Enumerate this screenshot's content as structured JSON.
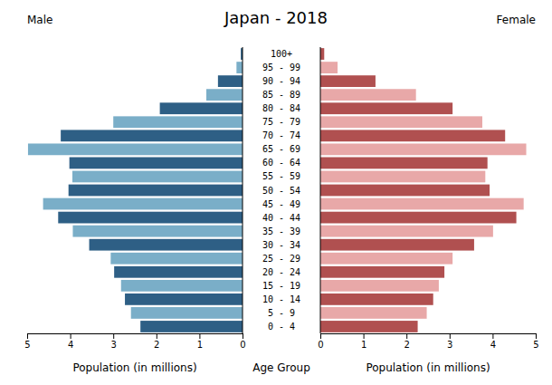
{
  "chart_data": {
    "type": "bar",
    "orientation": "horizontal",
    "title": "Japan - 2018",
    "xlabel_left": "Population (in millions)",
    "xlabel_right": "Population (in millions)",
    "ylabel": "Age Group",
    "categories": [
      "0 - 4",
      "5 - 9",
      "10 - 14",
      "15 - 19",
      "20 - 24",
      "25 - 29",
      "30 - 34",
      "35 - 39",
      "40 - 44",
      "45 - 49",
      "50 - 54",
      "55 - 59",
      "60 - 64",
      "65 - 69",
      "70 - 74",
      "75 - 79",
      "80 - 84",
      "85 - 89",
      "90 - 94",
      "95 - 99",
      "100+"
    ],
    "series": [
      {
        "name": "Male",
        "colors": [
          "#2e5f85",
          "#7aaec8",
          "#2e5f85",
          "#7aaec8",
          "#2e5f85",
          "#7aaec8",
          "#2e5f85",
          "#7aaec8",
          "#2e5f85",
          "#7aaec8",
          "#2e5f85",
          "#7aaec8",
          "#2e5f85",
          "#7aaec8",
          "#2e5f85",
          "#7aaec8",
          "#2e5f85",
          "#7aaec8",
          "#2e5f85",
          "#7aaec8",
          "#2e5f85"
        ],
        "values": [
          2.37,
          2.59,
          2.73,
          2.82,
          2.98,
          3.06,
          3.56,
          3.94,
          4.28,
          4.63,
          4.04,
          3.95,
          4.02,
          4.98,
          4.22,
          3.0,
          1.92,
          0.84,
          0.57,
          0.14,
          0.04
        ]
      },
      {
        "name": "Female",
        "colors": [
          "#b05050",
          "#e8a8a8",
          "#b05050",
          "#e8a8a8",
          "#b05050",
          "#e8a8a8",
          "#b05050",
          "#e8a8a8",
          "#b05050",
          "#e8a8a8",
          "#b05050",
          "#e8a8a8",
          "#b05050",
          "#e8a8a8",
          "#b05050",
          "#e8a8a8",
          "#b05050",
          "#e8a8a8",
          "#b05050",
          "#e8a8a8",
          "#b05050"
        ],
        "values": [
          2.26,
          2.47,
          2.62,
          2.75,
          2.88,
          3.07,
          3.57,
          4.01,
          4.55,
          4.72,
          3.93,
          3.83,
          3.88,
          4.78,
          4.29,
          3.76,
          3.07,
          2.22,
          1.28,
          0.4,
          0.09
        ]
      }
    ],
    "xlim": [
      0,
      5
    ],
    "xticks": [
      0,
      1,
      2,
      3,
      4,
      5
    ],
    "grid": false
  }
}
